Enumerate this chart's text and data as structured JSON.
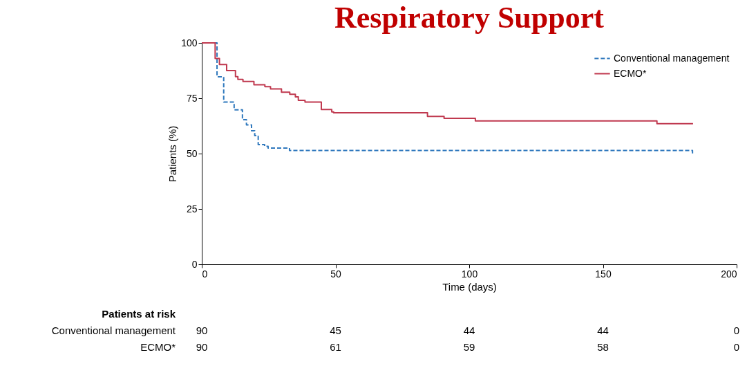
{
  "chart_data": {
    "type": "step",
    "title": "Respiratory Support",
    "xlabel": "Time (days)",
    "ylabel": "Patients (%)",
    "xlim": [
      0,
      200
    ],
    "xticks": [
      0,
      50,
      100,
      150,
      200
    ],
    "ylim": [
      0,
      100
    ],
    "yticks": [
      0,
      25,
      50,
      75,
      100
    ],
    "grid": false,
    "legend": "top right",
    "series": [
      {
        "name": "Conventional management",
        "color": "#2f78bd",
        "line_style": "dashed",
        "x": [
          0,
          5.7,
          8.2,
          12.1,
          15.2,
          16.7,
          18.6,
          19.8,
          21.1,
          23.5,
          24.8,
          32.8,
          183.5
        ],
        "values": [
          100,
          84.7,
          73.3,
          69.8,
          65.3,
          63.0,
          60.3,
          58.1,
          54.1,
          53.3,
          52.5,
          51.4,
          49.7
        ]
      },
      {
        "name": "ECMO*",
        "color": "#c0394f",
        "line_style": "solid",
        "x": [
          0,
          5,
          6.6,
          9.3,
          12.6,
          13.5,
          15.4,
          19.5,
          23.6,
          25.7,
          29.8,
          32.9,
          35,
          36.1,
          38.6,
          44.7,
          48.6,
          49.3,
          84.4,
          90.6,
          102.3,
          170.2,
          183.7
        ],
        "values": [
          100,
          93,
          90.2,
          87.5,
          84.8,
          83.5,
          82.6,
          81.1,
          80.2,
          79.2,
          77.7,
          76.8,
          75.6,
          74.1,
          73.3,
          69.9,
          68.8,
          68.4,
          66.8,
          65.9,
          64.8,
          63.5,
          63.5
        ]
      }
    ],
    "annotations": [
      "Patients at risk",
      "Conventional management",
      "90",
      "45",
      "44",
      "44",
      "0",
      "ECMO*",
      "90",
      "61",
      "59",
      "58",
      "0"
    ]
  }
}
